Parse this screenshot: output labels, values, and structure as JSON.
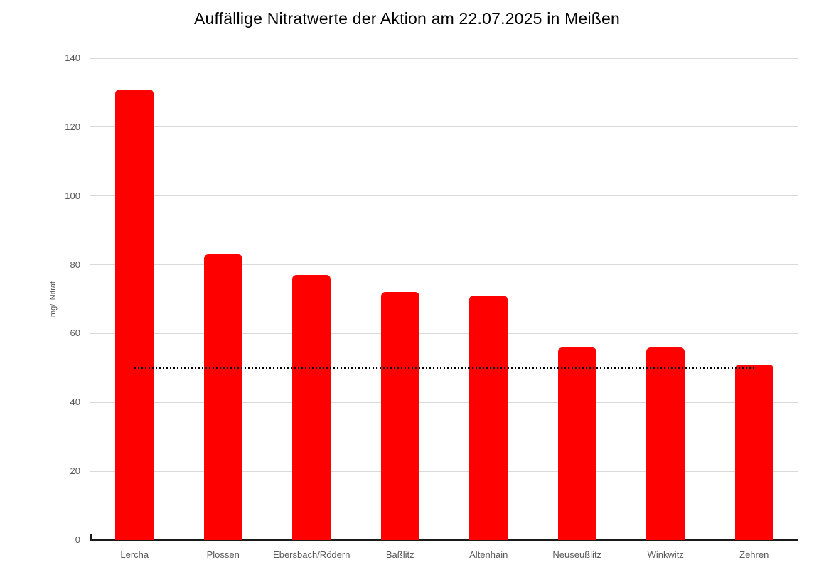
{
  "title": "Auffällige Nitratwerte der Aktion am 22.07.2025 in Meißen",
  "colors": {
    "bar": "#ff0000",
    "gridline": "#d9d9d9",
    "axis_line": "#1a1a1a",
    "tick_label": "#595959",
    "category_label": "#595959",
    "threshold": "#000000",
    "title": "#000000",
    "background": "#ffffff"
  },
  "chart_data": {
    "type": "bar",
    "title": "Auffällige Nitratwerte der Aktion am 22.07.2025 in Meißen",
    "categories": [
      "Lercha",
      "Plossen",
      "Ebersbach/Rödern",
      "Baßlitz",
      "Altenhain",
      "Neuseußlitz",
      "Winkwitz",
      "Zehren"
    ],
    "values": [
      131,
      83,
      77,
      72,
      71,
      56,
      56,
      51
    ],
    "xlabel": "",
    "ylabel": "mg/l Nitrat",
    "ylim": [
      0,
      140
    ],
    "yticks": [
      0,
      20,
      40,
      60,
      80,
      100,
      120,
      140
    ],
    "grid": true,
    "legend": "none",
    "threshold_line": {
      "value": 50,
      "style": "dotted",
      "span": "first-to-last-category-center"
    }
  }
}
